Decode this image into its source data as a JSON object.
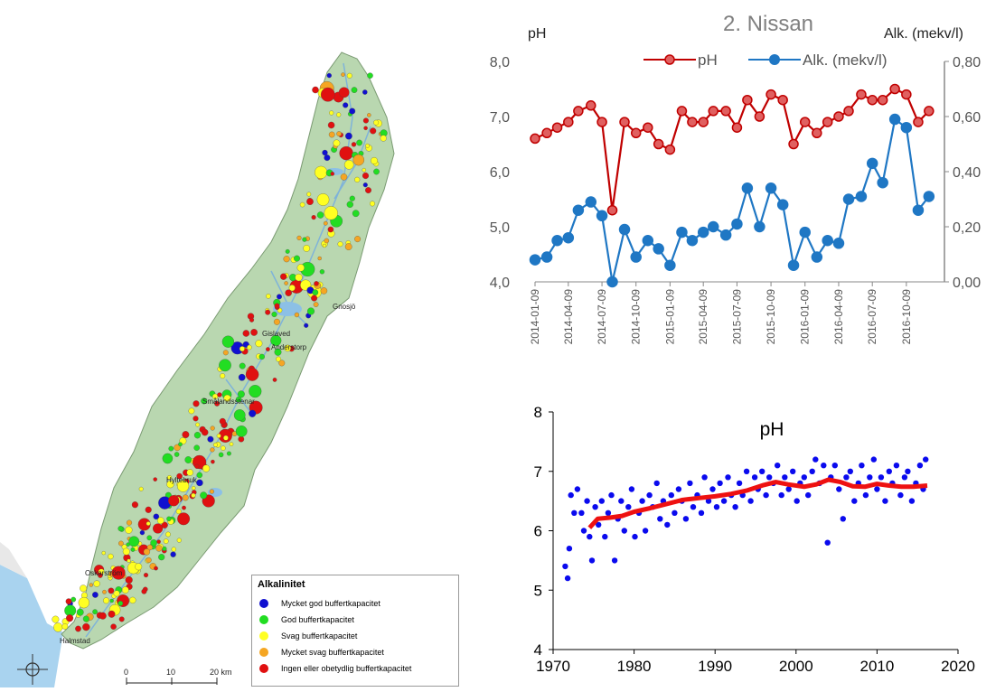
{
  "map": {
    "places": [
      "Gnosjö",
      "Gislaved",
      "Anderstorp",
      "Smålandsstenar",
      "Hyltebruk",
      "Oskarström",
      "Halmstad"
    ],
    "scalebar": {
      "ticks": [
        "0",
        "10",
        "20 km"
      ]
    },
    "legend": {
      "title": "Alkalinitet",
      "items": [
        {
          "label": "Mycket god buffertkapacitet",
          "color": "#1010d0"
        },
        {
          "label": "God buffertkapacitet",
          "color": "#22dd22"
        },
        {
          "label": "Svag buffertkapacitet",
          "color": "#ffff22"
        },
        {
          "label": "Mycket svag buffertkapacitet",
          "color": "#f5a623"
        },
        {
          "label": "Ingen eller obetydlig buffertkapacitet",
          "color": "#e01010"
        }
      ]
    }
  },
  "chart_data": [
    {
      "type": "line",
      "title": "2. Nissan",
      "ylabel_left": "pH",
      "ylabel_right": "Alk. (mekv/l)",
      "ylim_left": [
        4.0,
        8.0
      ],
      "ylim_right": [
        0.0,
        0.8
      ],
      "yticks_left": [
        "4,0",
        "5,0",
        "6,0",
        "7,0",
        "8,0"
      ],
      "yticks_right": [
        "0,00",
        "0,20",
        "0,40",
        "0,60",
        "0,80"
      ],
      "xticks": [
        "2014-01-09",
        "2014-04-09",
        "2014-07-09",
        "2014-10-09",
        "2015-01-09",
        "2015-04-09",
        "2015-07-09",
        "2015-10-09",
        "2016-01-09",
        "2016-04-09",
        "2016-07-09",
        "2016-10-09"
      ],
      "x_range": [
        "2014-01-09",
        "2017-01-20"
      ],
      "series": [
        {
          "name": "pH",
          "axis": "left",
          "color": "#c00000",
          "x": [
            "2014-01-09",
            "2014-02-10",
            "2014-03-10",
            "2014-04-09",
            "2014-05-06",
            "2014-06-09",
            "2014-07-09",
            "2014-08-06",
            "2014-09-08",
            "2014-10-09",
            "2014-11-10",
            "2014-12-09",
            "2015-01-09",
            "2015-02-10",
            "2015-03-10",
            "2015-04-09",
            "2015-05-06",
            "2015-06-09",
            "2015-07-09",
            "2015-08-06",
            "2015-09-08",
            "2015-10-09",
            "2015-11-10",
            "2015-12-09",
            "2016-01-09",
            "2016-02-10",
            "2016-03-10",
            "2016-04-09",
            "2016-05-06",
            "2016-06-09",
            "2016-07-09",
            "2016-08-06",
            "2016-09-08",
            "2016-10-09",
            "2016-11-10",
            "2016-12-09"
          ],
          "values": [
            6.6,
            6.7,
            6.8,
            6.9,
            7.1,
            7.2,
            6.9,
            5.3,
            6.9,
            6.7,
            6.8,
            6.5,
            6.4,
            7.1,
            6.9,
            6.9,
            7.1,
            7.1,
            6.8,
            7.3,
            7.0,
            7.4,
            7.3,
            6.5,
            6.9,
            6.7,
            6.9,
            7.0,
            7.1,
            7.4,
            7.3,
            7.3,
            7.5,
            7.4,
            6.9,
            7.1
          ]
        },
        {
          "name": "Alk. (mekv/l)",
          "axis": "right",
          "color": "#1f77c4",
          "x": [
            "2014-01-09",
            "2014-02-10",
            "2014-03-10",
            "2014-04-09",
            "2014-05-06",
            "2014-06-09",
            "2014-07-09",
            "2014-08-06",
            "2014-09-08",
            "2014-10-09",
            "2014-11-10",
            "2014-12-09",
            "2015-01-09",
            "2015-02-10",
            "2015-03-10",
            "2015-04-09",
            "2015-05-06",
            "2015-06-09",
            "2015-07-09",
            "2015-08-06",
            "2015-09-08",
            "2015-10-09",
            "2015-11-10",
            "2015-12-09",
            "2016-01-09",
            "2016-02-10",
            "2016-03-10",
            "2016-04-09",
            "2016-05-06",
            "2016-06-09",
            "2016-07-09",
            "2016-08-06",
            "2016-09-08",
            "2016-10-09",
            "2016-11-10",
            "2016-12-09"
          ],
          "values": [
            0.08,
            0.09,
            0.15,
            0.16,
            0.26,
            0.29,
            0.24,
            0.0,
            0.19,
            0.09,
            0.15,
            0.12,
            0.06,
            0.18,
            0.15,
            0.18,
            0.2,
            0.17,
            0.21,
            0.34,
            0.2,
            0.34,
            0.28,
            0.06,
            0.18,
            0.09,
            0.15,
            0.14,
            0.3,
            0.31,
            0.43,
            0.36,
            0.59,
            0.56,
            0.26,
            0.31
          ]
        }
      ]
    },
    {
      "type": "scatter",
      "title": "pH",
      "xlim": [
        1970,
        2020
      ],
      "ylim": [
        4,
        8
      ],
      "xticks": [
        "1970",
        "1980",
        "1990",
        "2000",
        "2010",
        "2020"
      ],
      "yticks": [
        "4",
        "5",
        "6",
        "7",
        "8"
      ],
      "grid": false,
      "point_color": "#0a0aee",
      "trend_color": "#ee1111",
      "points": [
        [
          1971.5,
          5.4
        ],
        [
          1971.8,
          5.2
        ],
        [
          1972.0,
          5.7
        ],
        [
          1972.2,
          6.6
        ],
        [
          1972.6,
          6.3
        ],
        [
          1973.0,
          6.7
        ],
        [
          1973.5,
          6.3
        ],
        [
          1973.8,
          6.0
        ],
        [
          1974.2,
          6.5
        ],
        [
          1974.5,
          5.9
        ],
        [
          1974.8,
          5.5
        ],
        [
          1975.2,
          6.4
        ],
        [
          1975.6,
          6.1
        ],
        [
          1976.0,
          6.5
        ],
        [
          1976.4,
          5.9
        ],
        [
          1976.8,
          6.3
        ],
        [
          1977.2,
          6.6
        ],
        [
          1977.6,
          5.5
        ],
        [
          1978.0,
          6.2
        ],
        [
          1978.4,
          6.5
        ],
        [
          1978.8,
          6.0
        ],
        [
          1979.3,
          6.4
        ],
        [
          1979.7,
          6.7
        ],
        [
          1980.1,
          5.9
        ],
        [
          1980.6,
          6.3
        ],
        [
          1981.0,
          6.5
        ],
        [
          1981.4,
          6.0
        ],
        [
          1981.9,
          6.6
        ],
        [
          1982.3,
          6.4
        ],
        [
          1982.8,
          6.8
        ],
        [
          1983.2,
          6.2
        ],
        [
          1983.6,
          6.5
        ],
        [
          1984.1,
          6.1
        ],
        [
          1984.6,
          6.6
        ],
        [
          1985.0,
          6.3
        ],
        [
          1985.5,
          6.7
        ],
        [
          1985.9,
          6.5
        ],
        [
          1986.4,
          6.2
        ],
        [
          1986.9,
          6.8
        ],
        [
          1987.3,
          6.4
        ],
        [
          1987.8,
          6.6
        ],
        [
          1988.3,
          6.3
        ],
        [
          1988.7,
          6.9
        ],
        [
          1989.2,
          6.5
        ],
        [
          1989.7,
          6.7
        ],
        [
          1990.2,
          6.4
        ],
        [
          1990.6,
          6.8
        ],
        [
          1991.1,
          6.5
        ],
        [
          1991.6,
          6.9
        ],
        [
          1992.0,
          6.6
        ],
        [
          1992.5,
          6.4
        ],
        [
          1993.0,
          6.8
        ],
        [
          1993.4,
          6.6
        ],
        [
          1993.9,
          7.0
        ],
        [
          1994.4,
          6.5
        ],
        [
          1994.9,
          6.9
        ],
        [
          1995.3,
          6.7
        ],
        [
          1995.8,
          7.0
        ],
        [
          1996.3,
          6.6
        ],
        [
          1996.7,
          6.9
        ],
        [
          1997.2,
          6.8
        ],
        [
          1997.7,
          7.1
        ],
        [
          1998.2,
          6.6
        ],
        [
          1998.6,
          6.9
        ],
        [
          1999.1,
          6.7
        ],
        [
          1999.6,
          7.0
        ],
        [
          2000.1,
          6.5
        ],
        [
          2000.5,
          6.8
        ],
        [
          2001.0,
          6.9
        ],
        [
          2001.5,
          6.6
        ],
        [
          2002.0,
          7.0
        ],
        [
          2002.4,
          7.2
        ],
        [
          2002.9,
          6.8
        ],
        [
          2003.4,
          7.1
        ],
        [
          2003.9,
          5.8
        ],
        [
          2004.3,
          6.9
        ],
        [
          2004.8,
          7.1
        ],
        [
          2005.3,
          6.7
        ],
        [
          2005.8,
          6.2
        ],
        [
          2006.2,
          6.9
        ],
        [
          2006.7,
          7.0
        ],
        [
          2007.2,
          6.5
        ],
        [
          2007.7,
          6.8
        ],
        [
          2008.1,
          7.1
        ],
        [
          2008.6,
          6.6
        ],
        [
          2009.1,
          6.9
        ],
        [
          2009.6,
          7.2
        ],
        [
          2010.0,
          6.7
        ],
        [
          2010.5,
          6.9
        ],
        [
          2011.0,
          6.5
        ],
        [
          2011.5,
          7.0
        ],
        [
          2011.9,
          6.8
        ],
        [
          2012.4,
          7.1
        ],
        [
          2012.9,
          6.6
        ],
        [
          2013.4,
          6.9
        ],
        [
          2013.8,
          7.0
        ],
        [
          2014.3,
          6.5
        ],
        [
          2014.8,
          6.8
        ],
        [
          2015.3,
          7.1
        ],
        [
          2015.7,
          6.7
        ],
        [
          2016.0,
          7.2
        ]
      ],
      "trend": [
        [
          1974.5,
          6.05
        ],
        [
          1975.5,
          6.2
        ],
        [
          1977,
          6.22
        ],
        [
          1978.5,
          6.25
        ],
        [
          1980,
          6.32
        ],
        [
          1982,
          6.38
        ],
        [
          1984,
          6.45
        ],
        [
          1986,
          6.52
        ],
        [
          1988,
          6.55
        ],
        [
          1990,
          6.58
        ],
        [
          1992,
          6.62
        ],
        [
          1994,
          6.68
        ],
        [
          1996,
          6.77
        ],
        [
          1997.5,
          6.82
        ],
        [
          1999,
          6.78
        ],
        [
          2001,
          6.74
        ],
        [
          2002.5,
          6.78
        ],
        [
          2004,
          6.86
        ],
        [
          2005.5,
          6.82
        ],
        [
          2007,
          6.75
        ],
        [
          2008.5,
          6.74
        ],
        [
          2010,
          6.79
        ],
        [
          2011.5,
          6.76
        ],
        [
          2013,
          6.74
        ],
        [
          2014.5,
          6.74
        ],
        [
          2016.2,
          6.76
        ]
      ]
    }
  ]
}
